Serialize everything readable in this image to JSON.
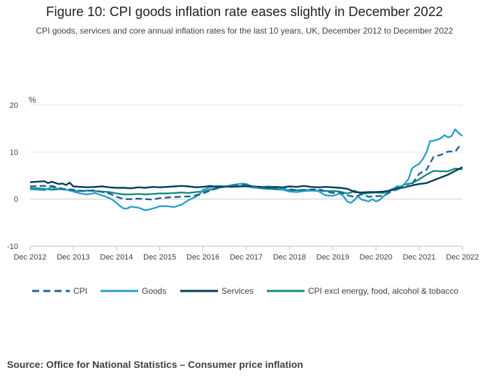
{
  "title": "Figure 10: CPI goods inflation rate eases slightly in December 2022",
  "subtitle": "CPI goods, services and core annual inflation rates for the last 10 years, UK, December 2012 to December 2022",
  "source": "Source: Office for National Statistics – Consumer price inflation",
  "chart_data": {
    "type": "line",
    "title": "Figure 10: CPI goods inflation rate eases slightly in December 2022",
    "ylabel": "%",
    "xlabel": "",
    "ylim": [
      -10,
      20
    ],
    "yticks": [
      -10,
      0,
      10,
      20
    ],
    "xlim": [
      0,
      120
    ],
    "x_ticks": [
      {
        "pos": 0,
        "label": "Dec 2012"
      },
      {
        "pos": 12,
        "label": "Dec 2013"
      },
      {
        "pos": 24,
        "label": "Dec 2014"
      },
      {
        "pos": 36,
        "label": "Dec 2015"
      },
      {
        "pos": 48,
        "label": "Dec 2016"
      },
      {
        "pos": 60,
        "label": "Dec 2017"
      },
      {
        "pos": 72,
        "label": "Dec 2018"
      },
      {
        "pos": 84,
        "label": "Dec 2019"
      },
      {
        "pos": 96,
        "label": "Dec 2020"
      },
      {
        "pos": 108,
        "label": "Dec 2021"
      },
      {
        "pos": 120,
        "label": "Dec 2022"
      }
    ],
    "x_unit": "months since Dec 2012",
    "series": [
      {
        "name": "CPI",
        "color": "#206095",
        "dash": true,
        "points": [
          [
            0,
            2.7
          ],
          [
            3,
            2.8
          ],
          [
            6,
            2.8
          ],
          [
            9,
            2.2
          ],
          [
            12,
            2.0
          ],
          [
            15,
            1.7
          ],
          [
            18,
            1.9
          ],
          [
            20,
            1.5
          ],
          [
            22,
            1.2
          ],
          [
            24,
            0.5
          ],
          [
            26,
            0.0
          ],
          [
            28,
            0.0
          ],
          [
            30,
            0.1
          ],
          [
            32,
            0.0
          ],
          [
            34,
            -0.1
          ],
          [
            36,
            0.2
          ],
          [
            39,
            0.4
          ],
          [
            42,
            0.5
          ],
          [
            45,
            0.6
          ],
          [
            48,
            1.2
          ],
          [
            50,
            1.8
          ],
          [
            52,
            2.3
          ],
          [
            54,
            2.6
          ],
          [
            57,
            2.9
          ],
          [
            60,
            3.0
          ],
          [
            62,
            2.7
          ],
          [
            65,
            2.4
          ],
          [
            68,
            2.3
          ],
          [
            71,
            2.4
          ],
          [
            72,
            2.1
          ],
          [
            74,
            1.9
          ],
          [
            77,
            2.0
          ],
          [
            80,
            2.1
          ],
          [
            83,
            1.5
          ],
          [
            84,
            1.3
          ],
          [
            86,
            1.5
          ],
          [
            88,
            0.8
          ],
          [
            90,
            0.5
          ],
          [
            92,
            1.0
          ],
          [
            94,
            0.5
          ],
          [
            96,
            0.6
          ],
          [
            98,
            0.7
          ],
          [
            100,
            1.5
          ],
          [
            102,
            2.1
          ],
          [
            104,
            2.5
          ],
          [
            106,
            3.2
          ],
          [
            108,
            5.4
          ],
          [
            110,
            6.2
          ],
          [
            112,
            9.0
          ],
          [
            114,
            9.4
          ],
          [
            116,
            10.1
          ],
          [
            118,
            10.1
          ],
          [
            119,
            11.1
          ],
          [
            120,
            10.5
          ]
        ]
      },
      {
        "name": "Goods",
        "color": "#27a0cc",
        "dash": false,
        "points": [
          [
            0,
            2.1
          ],
          [
            2,
            2.0
          ],
          [
            4,
            1.9
          ],
          [
            6,
            2.5
          ],
          [
            8,
            2.2
          ],
          [
            10,
            2.0
          ],
          [
            12,
            1.6
          ],
          [
            14,
            1.2
          ],
          [
            16,
            1.0
          ],
          [
            18,
            1.3
          ],
          [
            20,
            0.8
          ],
          [
            22,
            0.2
          ],
          [
            23,
            -0.2
          ],
          [
            24,
            -0.8
          ],
          [
            25,
            -1.5
          ],
          [
            26,
            -2.0
          ],
          [
            27,
            -2.0
          ],
          [
            28,
            -1.6
          ],
          [
            30,
            -1.8
          ],
          [
            32,
            -2.4
          ],
          [
            34,
            -2.0
          ],
          [
            35,
            -1.8
          ],
          [
            36,
            -1.5
          ],
          [
            38,
            -1.5
          ],
          [
            40,
            -1.7
          ],
          [
            42,
            -1.2
          ],
          [
            44,
            -0.2
          ],
          [
            46,
            0.5
          ],
          [
            47,
            1.0
          ],
          [
            48,
            2.0
          ],
          [
            50,
            2.5
          ],
          [
            52,
            2.8
          ],
          [
            54,
            2.7
          ],
          [
            56,
            3.0
          ],
          [
            58,
            3.2
          ],
          [
            59,
            3.3
          ],
          [
            60,
            3.2
          ],
          [
            61,
            2.9
          ],
          [
            62,
            2.4
          ],
          [
            64,
            2.5
          ],
          [
            66,
            2.7
          ],
          [
            68,
            2.5
          ],
          [
            70,
            2.0
          ],
          [
            72,
            1.6
          ],
          [
            74,
            1.5
          ],
          [
            76,
            1.7
          ],
          [
            78,
            1.8
          ],
          [
            80,
            1.7
          ],
          [
            82,
            0.8
          ],
          [
            84,
            0.7
          ],
          [
            86,
            1.2
          ],
          [
            87,
            0.6
          ],
          [
            88,
            -0.5
          ],
          [
            89,
            -0.8
          ],
          [
            90,
            -0.2
          ],
          [
            91,
            0.6
          ],
          [
            92,
            -0.1
          ],
          [
            94,
            -0.5
          ],
          [
            95,
            0.0
          ],
          [
            96,
            -0.5
          ],
          [
            97,
            -0.2
          ],
          [
            98,
            0.5
          ],
          [
            99,
            1.2
          ],
          [
            100,
            2.0
          ],
          [
            101,
            2.3
          ],
          [
            102,
            2.8
          ],
          [
            103,
            2.5
          ],
          [
            104,
            3.3
          ],
          [
            105,
            4.2
          ],
          [
            106,
            6.5
          ],
          [
            107,
            7.1
          ],
          [
            108,
            7.5
          ],
          [
            109,
            8.5
          ],
          [
            110,
            9.9
          ],
          [
            111,
            12.3
          ],
          [
            112,
            12.4
          ],
          [
            113,
            12.6
          ],
          [
            114,
            12.9
          ],
          [
            115,
            13.6
          ],
          [
            116,
            13.1
          ],
          [
            117,
            13.4
          ],
          [
            118,
            14.8
          ],
          [
            119,
            14.0
          ],
          [
            120,
            13.4
          ]
        ]
      },
      {
        "name": "Services",
        "color": "#003c57",
        "dash": false,
        "points": [
          [
            0,
            3.6
          ],
          [
            2,
            3.7
          ],
          [
            4,
            3.8
          ],
          [
            5,
            3.4
          ],
          [
            6,
            3.7
          ],
          [
            8,
            3.2
          ],
          [
            9,
            3.3
          ],
          [
            10,
            3.0
          ],
          [
            11,
            3.5
          ],
          [
            12,
            2.7
          ],
          [
            14,
            2.6
          ],
          [
            16,
            2.5
          ],
          [
            18,
            2.6
          ],
          [
            20,
            2.7
          ],
          [
            22,
            2.5
          ],
          [
            24,
            2.4
          ],
          [
            26,
            2.4
          ],
          [
            28,
            2.3
          ],
          [
            30,
            2.5
          ],
          [
            32,
            2.4
          ],
          [
            34,
            2.6
          ],
          [
            36,
            2.5
          ],
          [
            38,
            2.6
          ],
          [
            40,
            2.7
          ],
          [
            42,
            2.8
          ],
          [
            44,
            2.7
          ],
          [
            46,
            2.5
          ],
          [
            48,
            2.6
          ],
          [
            50,
            2.8
          ],
          [
            52,
            2.6
          ],
          [
            54,
            2.7
          ],
          [
            56,
            2.6
          ],
          [
            58,
            2.7
          ],
          [
            60,
            2.8
          ],
          [
            62,
            2.7
          ],
          [
            64,
            2.6
          ],
          [
            66,
            2.5
          ],
          [
            68,
            2.6
          ],
          [
            70,
            2.5
          ],
          [
            72,
            2.7
          ],
          [
            74,
            2.6
          ],
          [
            76,
            2.8
          ],
          [
            78,
            2.6
          ],
          [
            80,
            2.5
          ],
          [
            82,
            2.6
          ],
          [
            84,
            2.5
          ],
          [
            86,
            2.4
          ],
          [
            88,
            2.2
          ],
          [
            89,
            1.9
          ],
          [
            90,
            1.5
          ],
          [
            92,
            1.4
          ],
          [
            94,
            1.5
          ],
          [
            96,
            1.5
          ],
          [
            98,
            1.6
          ],
          [
            100,
            1.8
          ],
          [
            102,
            2.3
          ],
          [
            104,
            2.5
          ],
          [
            106,
            2.9
          ],
          [
            108,
            3.2
          ],
          [
            110,
            3.4
          ],
          [
            112,
            4.0
          ],
          [
            114,
            4.6
          ],
          [
            116,
            5.2
          ],
          [
            118,
            6.0
          ],
          [
            120,
            6.8
          ]
        ]
      },
      {
        "name": "CPI excl energy, food, alcohol & tobacco",
        "color": "#118c7b",
        "dash": false,
        "points": [
          [
            0,
            2.3
          ],
          [
            2,
            2.3
          ],
          [
            4,
            2.2
          ],
          [
            6,
            2.0
          ],
          [
            8,
            2.1
          ],
          [
            10,
            2.0
          ],
          [
            12,
            1.7
          ],
          [
            14,
            1.7
          ],
          [
            16,
            1.8
          ],
          [
            18,
            1.7
          ],
          [
            20,
            1.6
          ],
          [
            22,
            1.5
          ],
          [
            24,
            1.2
          ],
          [
            26,
            1.0
          ],
          [
            28,
            1.0
          ],
          [
            30,
            1.1
          ],
          [
            32,
            1.0
          ],
          [
            34,
            1.1
          ],
          [
            36,
            1.2
          ],
          [
            38,
            1.2
          ],
          [
            40,
            1.3
          ],
          [
            42,
            1.4
          ],
          [
            44,
            1.3
          ],
          [
            46,
            1.5
          ],
          [
            48,
            1.6
          ],
          [
            50,
            2.0
          ],
          [
            52,
            2.4
          ],
          [
            54,
            2.6
          ],
          [
            56,
            2.7
          ],
          [
            58,
            2.7
          ],
          [
            60,
            2.7
          ],
          [
            62,
            2.5
          ],
          [
            64,
            2.3
          ],
          [
            66,
            2.2
          ],
          [
            68,
            2.1
          ],
          [
            70,
            2.0
          ],
          [
            72,
            1.9
          ],
          [
            74,
            1.9
          ],
          [
            76,
            1.9
          ],
          [
            78,
            1.9
          ],
          [
            80,
            1.8
          ],
          [
            82,
            1.7
          ],
          [
            84,
            1.7
          ],
          [
            86,
            1.6
          ],
          [
            88,
            1.2
          ],
          [
            89,
            1.4
          ],
          [
            90,
            1.8
          ],
          [
            92,
            1.1
          ],
          [
            94,
            1.3
          ],
          [
            96,
            1.4
          ],
          [
            98,
            1.3
          ],
          [
            100,
            1.9
          ],
          [
            102,
            2.4
          ],
          [
            104,
            3.1
          ],
          [
            106,
            3.4
          ],
          [
            108,
            4.2
          ],
          [
            110,
            5.2
          ],
          [
            112,
            6.0
          ],
          [
            114,
            5.9
          ],
          [
            116,
            5.9
          ],
          [
            118,
            6.5
          ],
          [
            120,
            6.3
          ]
        ]
      }
    ],
    "legend": [
      "CPI",
      "Goods",
      "Services",
      "CPI excl energy, food, alcohol & tobacco"
    ],
    "legend_position": "bottom"
  }
}
